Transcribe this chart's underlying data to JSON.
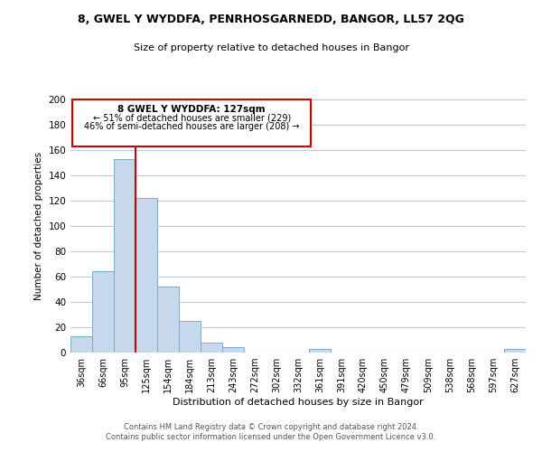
{
  "title": "8, GWEL Y WYDDFA, PENRHOSGARNEDD, BANGOR, LL57 2QG",
  "subtitle": "Size of property relative to detached houses in Bangor",
  "xlabel": "Distribution of detached houses by size in Bangor",
  "ylabel": "Number of detached properties",
  "bar_labels": [
    "36sqm",
    "66sqm",
    "95sqm",
    "125sqm",
    "154sqm",
    "184sqm",
    "213sqm",
    "243sqm",
    "272sqm",
    "302sqm",
    "332sqm",
    "361sqm",
    "391sqm",
    "420sqm",
    "450sqm",
    "479sqm",
    "509sqm",
    "538sqm",
    "568sqm",
    "597sqm",
    "627sqm"
  ],
  "bar_values": [
    13,
    64,
    153,
    122,
    52,
    25,
    8,
    4,
    0,
    0,
    0,
    3,
    0,
    0,
    0,
    0,
    0,
    0,
    0,
    0,
    3
  ],
  "bar_color": "#c8d8ec",
  "bar_edge_color": "#7aaac8",
  "vline_color": "#cc0000",
  "ylim": [
    0,
    200
  ],
  "yticks": [
    0,
    20,
    40,
    60,
    80,
    100,
    120,
    140,
    160,
    180,
    200
  ],
  "annotation_title": "8 GWEL Y WYDDFA: 127sqm",
  "annotation_line1": "← 51% of detached houses are smaller (229)",
  "annotation_line2": "46% of semi-detached houses are larger (208) →",
  "annotation_box_color": "#ffffff",
  "annotation_box_edge": "#cc0000",
  "footer_line1": "Contains HM Land Registry data © Crown copyright and database right 2024.",
  "footer_line2": "Contains public sector information licensed under the Open Government Licence v3.0.",
  "bg_color": "#ffffff",
  "grid_color": "#b8cce0"
}
